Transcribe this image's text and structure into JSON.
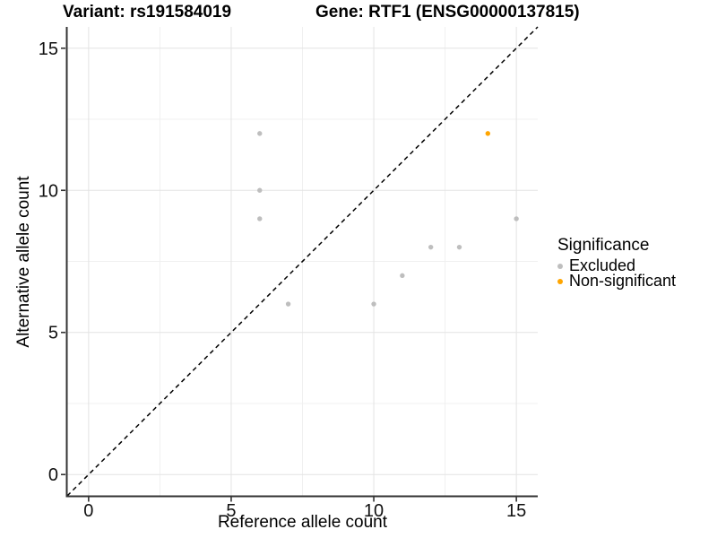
{
  "titles": {
    "variant": "Variant: rs191584019",
    "gene": "Gene: RTF1 (ENSG00000137815)"
  },
  "chart_data": {
    "type": "scatter",
    "xlabel": "Reference allele count",
    "ylabel": "Alternative allele count",
    "xlim": [
      -0.75,
      15.75
    ],
    "ylim": [
      -0.75,
      15.75
    ],
    "x_ticks": [
      0,
      5,
      10,
      15
    ],
    "y_ticks": [
      0,
      5,
      10,
      15
    ],
    "x_minor_ticks": [
      2.5,
      7.5,
      12.5
    ],
    "y_minor_ticks": [
      2.5,
      7.5,
      12.5
    ],
    "grid": "major+minor",
    "identity_line": {
      "slope": 1,
      "intercept": 0,
      "style": "dashed",
      "color": "#000000"
    },
    "series": [
      {
        "name": "Excluded",
        "color": "#BEBEBE",
        "points": [
          [
            6,
            12
          ],
          [
            6,
            10
          ],
          [
            6,
            9
          ],
          [
            7,
            6
          ],
          [
            10,
            6
          ],
          [
            11,
            7
          ],
          [
            12,
            8
          ],
          [
            13,
            8
          ],
          [
            15,
            9
          ]
        ]
      },
      {
        "name": "Non-significant",
        "color": "#FFA500",
        "points": [
          [
            14,
            12
          ]
        ]
      }
    ],
    "legend": {
      "title": "Significance",
      "position": "right"
    }
  }
}
